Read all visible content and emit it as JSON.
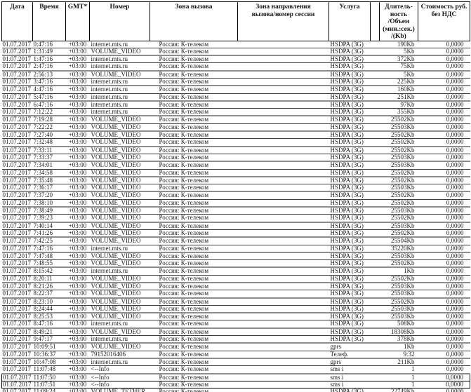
{
  "document": {
    "type_label": "billing-detail-table",
    "colors": {
      "background": "#ffffff",
      "text": "#1c1c1c",
      "border_dark": "#000000",
      "separator_gray": "#8d8d8d"
    }
  },
  "table": {
    "columns": [
      {
        "key": "date",
        "label": "Дата"
      },
      {
        "key": "time",
        "label": "Время"
      },
      {
        "key": "gmt",
        "label": "GMT*"
      },
      {
        "key": "number",
        "label": "Номер"
      },
      {
        "key": "zone",
        "label": "Зона вызова"
      },
      {
        "key": "direction",
        "label": "Зона направления\nвызова/номер сессии"
      },
      {
        "key": "service",
        "label": "Услуга"
      },
      {
        "key": "spacer",
        "label": ""
      },
      {
        "key": "volume",
        "label": "Длитель-\nность\n/Объем\n(мин.:сек.)\n/(Kb)"
      },
      {
        "key": "cost",
        "label": "Стоимость руб.\nбез НДС"
      }
    ],
    "boxed_row_indices": [
      44,
      45
    ],
    "rows": [
      [
        "01.07.2017",
        "0:47:16",
        "+03:00",
        "internet.mts.ru",
        "Россия: К-телеком",
        "",
        "HSDPA (3G)",
        "",
        "190Kb",
        "0,0000"
      ],
      [
        "01.07.2017",
        "1:31:49",
        "+03:00",
        "VOLUME_VIDEO",
        "Россия: К-телеком",
        "",
        "HSDPA (3G)",
        "",
        "5Kb",
        "0,0000"
      ],
      [
        "01.07.2017",
        "1:47:16",
        "+03:00",
        "internet.mts.ru",
        "Россия: К-телеком",
        "",
        "HSDPA (3G)",
        "",
        "372Kb",
        "0,0000"
      ],
      [
        "01.07.2017",
        "2:47:16",
        "+03:00",
        "internet.mts.ru",
        "Россия: К-телеком",
        "",
        "HSDPA (3G)",
        "",
        "75Kb",
        "0,0000"
      ],
      [
        "01.07.2017",
        "2:56:13",
        "+03:00",
        "VOLUME_VIDEO",
        "Россия: К-телеком",
        "",
        "HSDPA (3G)",
        "",
        "5Kb",
        "0,0000"
      ],
      [
        "01.07.2017",
        "3:47:16",
        "+03:00",
        "internet.mts.ru",
        "Россия: К-телеком",
        "",
        "HSDPA (3G)",
        "",
        "225Kb",
        "0,0000"
      ],
      [
        "01.07.2017",
        "4:47:16",
        "+03:00",
        "internet.mts.ru",
        "Россия: К-телеком",
        "",
        "HSDPA (3G)",
        "",
        "160Kb",
        "0,0000"
      ],
      [
        "01.07.2017",
        "5:47:16",
        "+03:00",
        "internet.mts.ru",
        "Россия: К-телеком",
        "",
        "HSDPA (3G)",
        "",
        "251Kb",
        "0,0000"
      ],
      [
        "01.07.2017",
        "6:47:16",
        "+03:00",
        "internet.mts.ru",
        "Россия: К-телеком",
        "",
        "HSDPA (3G)",
        "",
        "97Kb",
        "0,0000"
      ],
      [
        "01.07.2017",
        "7:12:22",
        "+03:00",
        "internet.mts.ru",
        "Россия: К-телеком",
        "",
        "HSDPA (3G)",
        "",
        "355Kb",
        "0,0000"
      ],
      [
        "01.07.2017",
        "7:19:28",
        "+03:00",
        "VOLUME_VIDEO",
        "Россия: К-телеком",
        "",
        "HSDPA (3G)",
        "",
        "25502Kb",
        "0,0000"
      ],
      [
        "01.07.2017",
        "7:22:22",
        "+03:00",
        "VOLUME_VIDEO",
        "Россия: К-телеком",
        "",
        "HSDPA (3G)",
        "",
        "25503Kb",
        "0,0000"
      ],
      [
        "01.07.2017",
        "7:27:40",
        "+03:00",
        "VOLUME_VIDEO",
        "Россия: К-телеком",
        "",
        "HSDPA (3G)",
        "",
        "25502Kb",
        "0,0000"
      ],
      [
        "01.07.2017",
        "7:32:48",
        "+03:00",
        "VOLUME_VIDEO",
        "Россия: К-телеком",
        "",
        "HSDPA (3G)",
        "",
        "25502Kb",
        "0,0000"
      ],
      [
        "01.07.2017",
        "7:33:11",
        "+03:00",
        "VOLUME_VIDEO",
        "Россия: К-телеком",
        "",
        "HSDPA (3G)",
        "",
        "25502Kb",
        "0,0000"
      ],
      [
        "01.07.2017",
        "7:33:37",
        "+03:00",
        "VOLUME_VIDEO",
        "Россия: К-телеком",
        "",
        "HSDPA (3G)",
        "",
        "25503Kb",
        "0,0000"
      ],
      [
        "01.07.2017",
        "7:34:01",
        "+03:00",
        "VOLUME_VIDEO",
        "Россия: К-телеком",
        "",
        "HSDPA (3G)",
        "",
        "25503Kb",
        "0,0000"
      ],
      [
        "01.07.2017",
        "7:34:58",
        "+03:00",
        "VOLUME_VIDEO",
        "Россия: К-телеком",
        "",
        "HSDPA (3G)",
        "",
        "25502Kb",
        "0,0000"
      ],
      [
        "01.07.2017",
        "7:35:48",
        "+03:00",
        "VOLUME_VIDEO",
        "Россия: К-телеком",
        "",
        "HSDPA (3G)",
        "",
        "25502Kb",
        "0,0000"
      ],
      [
        "01.07.2017",
        "7:36:17",
        "+03:00",
        "VOLUME_VIDEO",
        "Россия: К-телеком",
        "",
        "HSDPA (3G)",
        "",
        "25503Kb",
        "0,0000"
      ],
      [
        "01.07.2017",
        "7:37:20",
        "+03:00",
        "VOLUME_VIDEO",
        "Россия: К-телеком",
        "",
        "HSDPA (3G)",
        "",
        "25502Kb",
        "0,0000"
      ],
      [
        "01.07.2017",
        "7:38:10",
        "+03:00",
        "VOLUME_VIDEO",
        "Россия: К-телеком",
        "",
        "HSDPA (3G)",
        "",
        "25502Kb",
        "0,0000"
      ],
      [
        "01.07.2017",
        "7:38:49",
        "+03:00",
        "VOLUME_VIDEO",
        "Россия: К-телеком",
        "",
        "HSDPA (3G)",
        "",
        "25503Kb",
        "0,0000"
      ],
      [
        "01.07.2017",
        "7:39:23",
        "+03:00",
        "VOLUME_VIDEO",
        "Россия: К-телеком",
        "",
        "HSDPA (3G)",
        "",
        "25502Kb",
        "0,0000"
      ],
      [
        "01.07.2017",
        "7:40:14",
        "+03:00",
        "VOLUME_VIDEO",
        "Россия: К-телеком",
        "",
        "HSDPA (3G)",
        "",
        "25503Kb",
        "0,0000"
      ],
      [
        "01.07.2017",
        "7:41:26",
        "+03:00",
        "VOLUME_VIDEO",
        "Россия: К-телеком",
        "",
        "HSDPA (3G)",
        "",
        "25502Kb",
        "0,0000"
      ],
      [
        "01.07.2017",
        "7:42:25",
        "+03:00",
        "VOLUME_VIDEO",
        "Россия: К-телеком",
        "",
        "HSDPA (3G)",
        "",
        "25504Kb",
        "0,0000"
      ],
      [
        "01.07.2017",
        "7:47:16",
        "+03:00",
        "internet.mts.ru",
        "Россия: К-телеком",
        "",
        "HSDPA (3G)",
        "",
        "35220Kb",
        "0,0000"
      ],
      [
        "01.07.2017",
        "7:47:48",
        "+03:00",
        "VOLUME_VIDEO",
        "Россия: К-телеком",
        "",
        "HSDPA (3G)",
        "",
        "25503Kb",
        "0,0000"
      ],
      [
        "01.07.2017",
        "7:48:55",
        "+03:00",
        "VOLUME_VIDEO",
        "Россия: К-телеком",
        "",
        "HSDPA (3G)",
        "",
        "25502Kb",
        "0,0000"
      ],
      [
        "01.07.2017",
        "8:15:42",
        "+03:00",
        "internet.mts.ru",
        "Россия: К-телеком",
        "",
        "HSDPA (3G)",
        "",
        "1Kb",
        "0,0000"
      ],
      [
        "01.07.2017",
        "8:20:11",
        "+03:00",
        "VOLUME_VIDEO",
        "Россия: К-телеком",
        "",
        "HSDPA (3G)",
        "",
        "25502Kb",
        "0,0000"
      ],
      [
        "01.07.2017",
        "8:21:26",
        "+03:00",
        "VOLUME_VIDEO",
        "Россия: К-телеком",
        "",
        "HSDPA (3G)",
        "",
        "25503Kb",
        "0,0000"
      ],
      [
        "01.07.2017",
        "8:22:37",
        "+03:00",
        "VOLUME_VIDEO",
        "Россия: К-телеком",
        "",
        "HSDPA (3G)",
        "",
        "25503Kb",
        "0,0000"
      ],
      [
        "01.07.2017",
        "8:23:10",
        "+03:00",
        "VOLUME_VIDEO",
        "Россия: К-телеком",
        "",
        "HSDPA (3G)",
        "",
        "25502Kb",
        "0,0000"
      ],
      [
        "01.07.2017",
        "8:24:44",
        "+03:00",
        "VOLUME_VIDEO",
        "Россия: К-телеком",
        "",
        "HSDPA (3G)",
        "",
        "25503Kb",
        "0,0000"
      ],
      [
        "01.07.2017",
        "8:25:53",
        "+03:00",
        "VOLUME_VIDEO",
        "Россия: К-телеком",
        "",
        "HSDPA (3G)",
        "",
        "25503Kb",
        "0,0000"
      ],
      [
        "01.07.2017",
        "8:47:16",
        "+03:00",
        "internet.mts.ru",
        "Россия: К-телеком",
        "",
        "HSDPA (3G)",
        "",
        "508Kb",
        "0,0000"
      ],
      [
        "01.07.2017",
        "8:49:21",
        "+03:00",
        "VOLUME_VIDEO",
        "Россия: К-телеком",
        "",
        "HSDPA (3G)",
        "",
        "18308Kb",
        "0,0000"
      ],
      [
        "01.07.2017",
        "9:47:17",
        "+03:00",
        "internet.mts.ru",
        "Россия: К-телеком",
        "",
        "HSDPA (3G)",
        "",
        "378Kb",
        "0,0000"
      ],
      [
        "01.07.2017",
        "10:09:51",
        "+03:00",
        "VOLUME_VIDEO",
        "Россия: К-телеком",
        "",
        "gprs",
        "",
        "1Kb",
        "0,0000"
      ],
      [
        "01.07.2017",
        "10:36:37",
        "+03:00",
        "79152016406",
        "Россия: К-телеком",
        "",
        "Телеф.",
        "",
        "9:32",
        "0,0000"
      ],
      [
        "01.07.2017",
        "10:47:08",
        "+03:00",
        "internet.mts.ru",
        "Россия: К-телеком",
        "",
        "gprs",
        "",
        "211Kb",
        "0,0000"
      ],
      [
        "01.07.2017",
        "11:07:48",
        "+03:00",
        "<--Info",
        "Россия: К-телеком",
        "",
        "sms i",
        "",
        "1",
        "0,0000"
      ],
      [
        "01.07.2017",
        "11:07:50",
        "+03:00",
        "<--Info",
        "Россия: К-телеком",
        "",
        "sms i",
        "",
        "1",
        "0,0000"
      ],
      [
        "01.07.2017",
        "11:07:51",
        "+03:00",
        "<--Info",
        "Россия: К-телеком",
        "",
        "sms i",
        "",
        "1",
        "0,0000"
      ],
      [
        "01.07.2017",
        "11:09:24",
        "+03:00",
        "VOLUME_TETHER",
        "Россия: К-телеком",
        "",
        "HSDPA (3G)",
        "",
        "22749Kb",
        "0,0000"
      ]
    ]
  }
}
